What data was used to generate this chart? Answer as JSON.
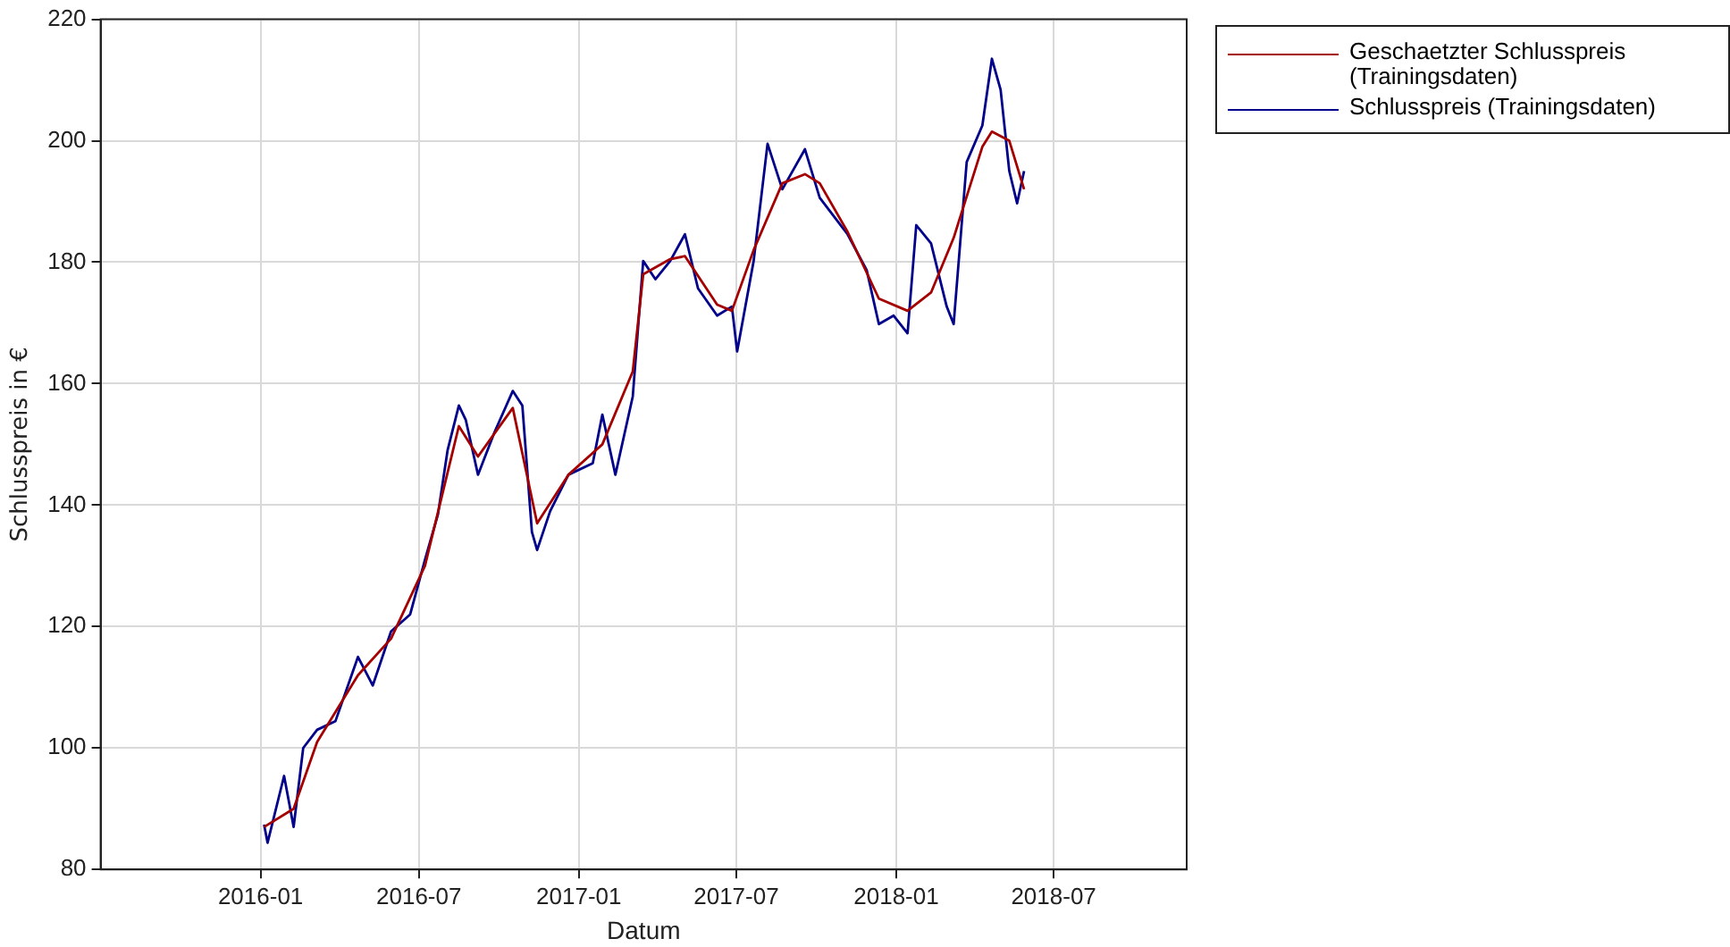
{
  "chart_data": {
    "type": "line",
    "xlabel": "Datum",
    "ylabel": "Schlusspreis in €",
    "xlim": [
      "2015-07-01",
      "2018-12-01"
    ],
    "xticks": [
      "2016-01",
      "2016-07",
      "2017-01",
      "2017-07",
      "2018-01",
      "2018-07"
    ],
    "ylim": [
      80,
      220
    ],
    "yticks": [
      80,
      100,
      120,
      140,
      160,
      180,
      200,
      220
    ],
    "grid": true,
    "legend": "top right",
    "marker": "none",
    "line_style": "solid",
    "series": [
      {
        "name": "Geschaetzter Schlusspreis (Trainingsdaten)",
        "color": "#a50000",
        "x": [
          "2016-01-05",
          "2016-02-08",
          "2016-03-06",
          "2016-04-22",
          "2016-05-30",
          "2016-07-08",
          "2016-08-16",
          "2016-09-07",
          "2016-10-17",
          "2016-11-14",
          "2016-12-20",
          "2017-01-28",
          "2017-03-04",
          "2017-03-16",
          "2017-04-16",
          "2017-05-03",
          "2017-06-09",
          "2017-06-26",
          "2017-07-21",
          "2017-08-23",
          "2017-09-18",
          "2017-10-05",
          "2017-11-06",
          "2017-12-12",
          "2018-01-14",
          "2018-02-10",
          "2018-03-08",
          "2018-04-10",
          "2018-04-21",
          "2018-05-11",
          "2018-05-28"
        ],
        "values": [
          87,
          90,
          101,
          112,
          118,
          130,
          153,
          148,
          156,
          137,
          145,
          150,
          162,
          178,
          180.5,
          181,
          173,
          172,
          182,
          193,
          194.5,
          193,
          185,
          174,
          172,
          175,
          184,
          199,
          201.5,
          200,
          192
        ]
      },
      {
        "name": "Schlusspreis (Trainingsdaten)",
        "color": "#00008b",
        "x": [
          "2016-01-05",
          "2016-01-09",
          "2016-01-28",
          "2016-02-08",
          "2016-02-19",
          "2016-03-06",
          "2016-03-27",
          "2016-04-22",
          "2016-05-09",
          "2016-05-30",
          "2016-06-21",
          "2016-07-08",
          "2016-07-23",
          "2016-08-03",
          "2016-08-16",
          "2016-08-24",
          "2016-09-07",
          "2016-09-26",
          "2016-10-17",
          "2016-10-28",
          "2016-11-08",
          "2016-11-14",
          "2016-11-29",
          "2016-12-20",
          "2017-01-17",
          "2017-01-28",
          "2017-02-12",
          "2017-03-04",
          "2017-03-16",
          "2017-03-30",
          "2017-04-16",
          "2017-05-03",
          "2017-05-18",
          "2017-06-09",
          "2017-06-26",
          "2017-07-02",
          "2017-07-21",
          "2017-08-06",
          "2017-08-23",
          "2017-09-18",
          "2017-10-05",
          "2017-11-06",
          "2017-11-28",
          "2017-12-12",
          "2017-12-29",
          "2018-01-14",
          "2018-01-24",
          "2018-02-10",
          "2018-02-28",
          "2018-03-08",
          "2018-03-23",
          "2018-04-10",
          "2018-04-21",
          "2018-05-01",
          "2018-05-11",
          "2018-05-20",
          "2018-05-28"
        ],
        "values": [
          87.4,
          84.4,
          95.4,
          87,
          100,
          103,
          104.4,
          115,
          110.3,
          119.2,
          122,
          131,
          138.5,
          149,
          156.4,
          154,
          145,
          152,
          158.8,
          156.4,
          135.6,
          132.6,
          139,
          145,
          146.9,
          154.9,
          145,
          157.9,
          180.2,
          177.2,
          180.2,
          184.6,
          175.7,
          171.2,
          172.7,
          165.3,
          180.2,
          199.5,
          192,
          198.6,
          190.6,
          184.6,
          178.7,
          169.8,
          171.2,
          168.3,
          186.1,
          183.1,
          172.7,
          169.8,
          196.5,
          202.5,
          213.5,
          208.4,
          195,
          189.7,
          195
        ]
      }
    ]
  }
}
